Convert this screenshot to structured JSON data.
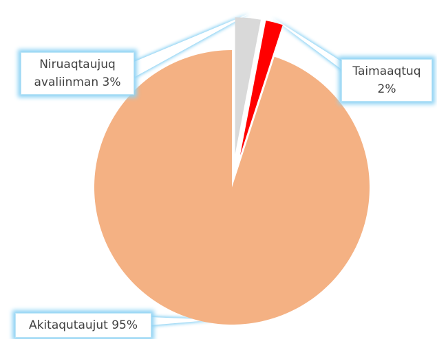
{
  "chart_data": {
    "type": "pie",
    "categories": [
      "Niruaqtaujuq avaliinman",
      "Taimaaqtuq",
      "Akitaqutaujut"
    ],
    "values": [
      3,
      2,
      95
    ],
    "value_labels": [
      "3%",
      "2%",
      "95%"
    ],
    "colors": [
      "#d9d9d9",
      "#ff0000",
      "#f4b183"
    ]
  }
}
